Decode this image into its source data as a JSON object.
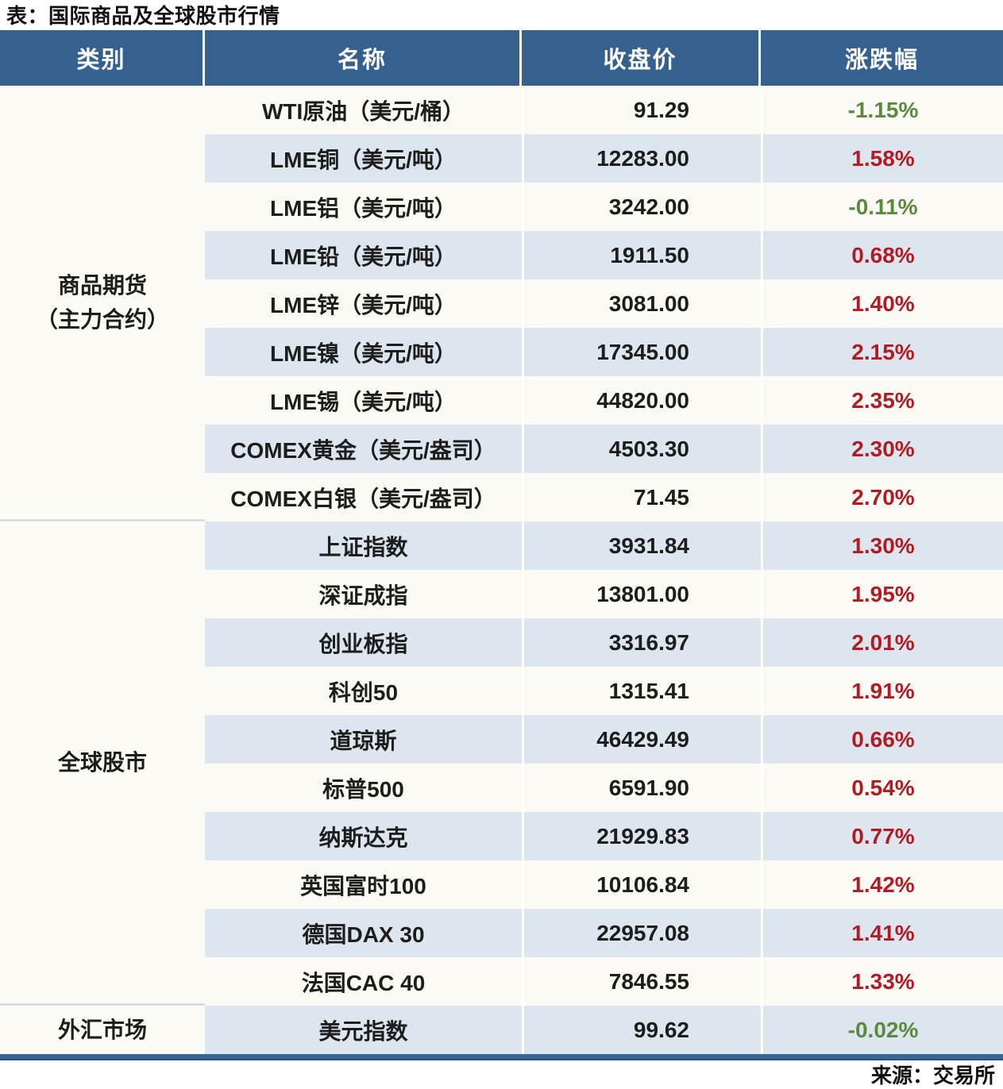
{
  "chart_data": {
    "type": "table",
    "title": "表：国际商品及全球股市行情",
    "source": "来源：交易所",
    "columns": [
      "类别",
      "名称",
      "收盘价",
      "涨跌幅"
    ],
    "groups": [
      {
        "category_lines": [
          "商品期货",
          "（主力合约）"
        ],
        "rows": [
          {
            "name": "WTI原油（美元/桶）",
            "close": "91.29",
            "change": "-1.15%",
            "direction": "down"
          },
          {
            "name": "LME铜（美元/吨）",
            "close": "12283.00",
            "change": "1.58%",
            "direction": "up"
          },
          {
            "name": "LME铝（美元/吨）",
            "close": "3242.00",
            "change": "-0.11%",
            "direction": "down"
          },
          {
            "name": "LME铅（美元/吨）",
            "close": "1911.50",
            "change": "0.68%",
            "direction": "up"
          },
          {
            "name": "LME锌（美元/吨）",
            "close": "3081.00",
            "change": "1.40%",
            "direction": "up"
          },
          {
            "name": "LME镍（美元/吨）",
            "close": "17345.00",
            "change": "2.15%",
            "direction": "up"
          },
          {
            "name": "LME锡（美元/吨）",
            "close": "44820.00",
            "change": "2.35%",
            "direction": "up"
          },
          {
            "name": "COMEX黄金（美元/盎司）",
            "close": "4503.30",
            "change": "2.30%",
            "direction": "up"
          },
          {
            "name": "COMEX白银（美元/盎司）",
            "close": "71.45",
            "change": "2.70%",
            "direction": "up"
          }
        ]
      },
      {
        "category_lines": [
          "全球股市"
        ],
        "rows": [
          {
            "name": "上证指数",
            "close": "3931.84",
            "change": "1.30%",
            "direction": "up"
          },
          {
            "name": "深证成指",
            "close": "13801.00",
            "change": "1.95%",
            "direction": "up"
          },
          {
            "name": "创业板指",
            "close": "3316.97",
            "change": "2.01%",
            "direction": "up"
          },
          {
            "name": "科创50",
            "close": "1315.41",
            "change": "1.91%",
            "direction": "up"
          },
          {
            "name": "道琼斯",
            "close": "46429.49",
            "change": "0.66%",
            "direction": "up"
          },
          {
            "name": "标普500",
            "close": "6591.90",
            "change": "0.54%",
            "direction": "up"
          },
          {
            "name": "纳斯达克",
            "close": "21929.83",
            "change": "0.77%",
            "direction": "up"
          },
          {
            "name": "英国富时100",
            "close": "10106.84",
            "change": "1.42%",
            "direction": "up"
          },
          {
            "name": "德国DAX 30",
            "close": "22957.08",
            "change": "1.41%",
            "direction": "up"
          },
          {
            "name": "法国CAC 40",
            "close": "7846.55",
            "change": "1.33%",
            "direction": "up"
          }
        ]
      },
      {
        "category_lines": [
          "外汇市场"
        ],
        "rows": [
          {
            "name": "美元指数",
            "close": "99.62",
            "change": "-0.02%",
            "direction": "down"
          }
        ]
      }
    ]
  },
  "colors": {
    "header_bg": "#36618F",
    "stripe_row": "#DDE5EF",
    "plain_row": "#FBFAF4",
    "up_red": "#B21B23",
    "down_green": "#5B8A3E",
    "bottom_border": "#3A6695",
    "group_divider": "#D7DDE5"
  }
}
